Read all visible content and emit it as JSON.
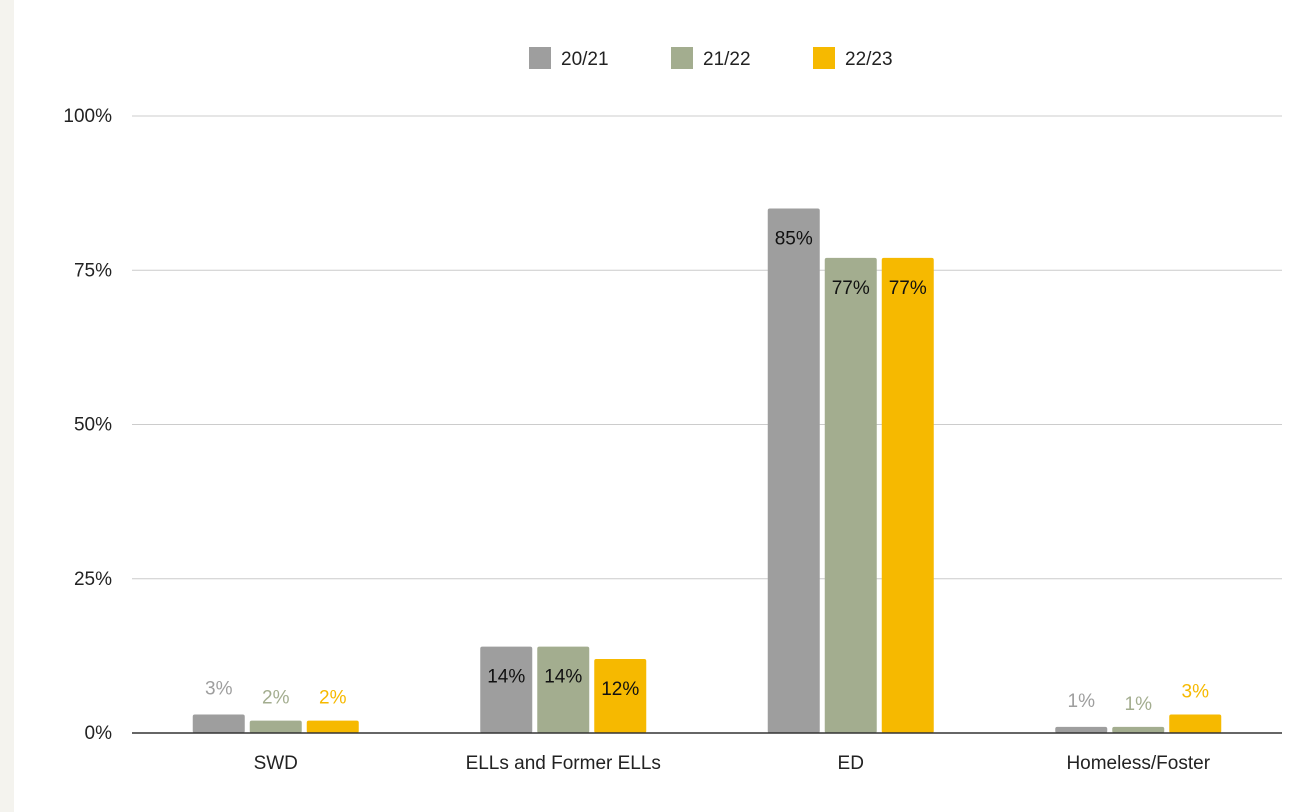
{
  "chart_data": {
    "type": "bar",
    "categories": [
      "SWD",
      "ELLs and Former ELLs",
      "ED",
      "Homeless/Foster"
    ],
    "series": [
      {
        "name": "20/21",
        "color": "#9e9e9e",
        "values": [
          3,
          14,
          85,
          1
        ],
        "labels": [
          "3%",
          "14%",
          "85%",
          "1%"
        ]
      },
      {
        "name": "21/22",
        "color": "#a3ad8f",
        "values": [
          2,
          14,
          77,
          1
        ],
        "labels": [
          "2%",
          "14%",
          "77%",
          "1%"
        ]
      },
      {
        "name": "22/23",
        "color": "#f6b900",
        "values": [
          2,
          12,
          77,
          3
        ],
        "labels": [
          "2%",
          "12%",
          "77%",
          "3%"
        ]
      }
    ],
    "ylim": [
      0,
      100
    ],
    "yticks": [
      0,
      25,
      50,
      75,
      100
    ],
    "ytick_labels": [
      "0%",
      "25%",
      "50%",
      "75%",
      "100%"
    ],
    "title": "",
    "xlabel": "",
    "ylabel": "",
    "grid": true,
    "legend": "top-center"
  }
}
